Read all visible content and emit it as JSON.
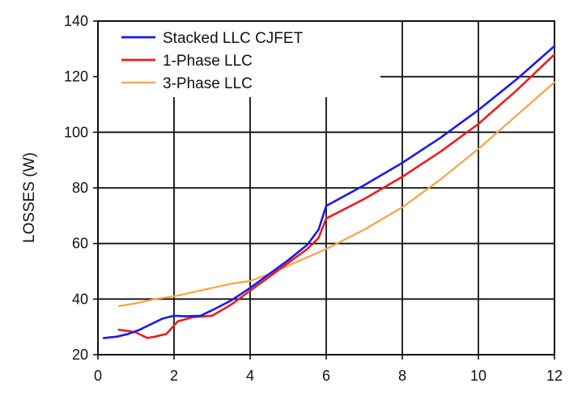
{
  "chart_data": {
    "type": "line",
    "title": "",
    "xlabel": "",
    "ylabel": "LOSSES (W)",
    "xlim": [
      0,
      12
    ],
    "ylim": [
      20,
      140
    ],
    "x_ticks": [
      0,
      2,
      4,
      6,
      8,
      10,
      12
    ],
    "y_ticks": [
      20,
      40,
      60,
      80,
      100,
      120,
      140
    ],
    "x_tick_labels": [
      "0",
      "2",
      "4",
      "6",
      "8",
      "10",
      "12"
    ],
    "y_tick_labels": [
      "20",
      "40",
      "60",
      "80",
      "100",
      "120",
      "140"
    ],
    "grid": true,
    "legend_position": "top-left",
    "series": [
      {
        "name": "Stacked LLC CJFET",
        "color": "#1a1aee",
        "x": [
          0.15,
          0.5,
          0.8,
          1.1,
          1.4,
          1.7,
          2.0,
          2.3,
          2.7,
          3.0,
          3.5,
          4.0,
          4.5,
          5.0,
          5.5,
          5.8,
          6.0,
          7.0,
          8.0,
          9.0,
          10.0,
          11.0,
          12.0
        ],
        "y": [
          26,
          26.5,
          27.5,
          29,
          31,
          33,
          34,
          33.8,
          34,
          36,
          39.5,
          44,
          49,
          54,
          59.5,
          65,
          73.5,
          81,
          89,
          98,
          108,
          119,
          131
        ]
      },
      {
        "name": "1-Phase LLC",
        "color": "#ee1c1c",
        "x": [
          0.55,
          0.8,
          1.0,
          1.3,
          1.5,
          1.8,
          2.1,
          2.5,
          3.0,
          3.5,
          4.0,
          4.5,
          5.0,
          5.5,
          5.8,
          6.0,
          7.0,
          8.0,
          9.0,
          10.0,
          11.0,
          12.0
        ],
        "y": [
          29,
          28.5,
          28,
          26,
          26.5,
          27.5,
          32,
          33.5,
          34,
          38,
          43,
          48,
          53,
          58,
          62,
          69,
          76,
          84,
          93,
          103,
          115,
          128
        ]
      },
      {
        "name": "3-Phase LLC",
        "color": "#f5a445",
        "x": [
          0.55,
          1.0,
          1.5,
          2.0,
          2.5,
          3.0,
          3.5,
          4.0,
          4.5,
          5.0,
          5.5,
          6.0,
          7.0,
          8.0,
          9.0,
          10.0,
          11.0,
          12.0
        ],
        "y": [
          37.5,
          38.5,
          40,
          41,
          42.5,
          44,
          45.5,
          46.5,
          49,
          52,
          55,
          58,
          65,
          73,
          83,
          94,
          106,
          118
        ]
      }
    ]
  }
}
